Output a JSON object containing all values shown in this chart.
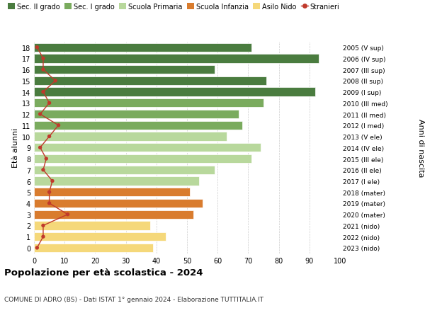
{
  "ages": [
    18,
    17,
    16,
    15,
    14,
    13,
    12,
    11,
    10,
    9,
    8,
    7,
    6,
    5,
    4,
    3,
    2,
    1,
    0
  ],
  "bar_values": [
    71,
    93,
    59,
    76,
    92,
    75,
    67,
    68,
    63,
    74,
    71,
    59,
    54,
    51,
    55,
    52,
    38,
    43,
    39
  ],
  "stranieri_values": [
    1,
    3,
    3,
    7,
    3,
    5,
    2,
    8,
    5,
    2,
    4,
    3,
    6,
    5,
    5,
    11,
    3,
    3,
    1
  ],
  "right_labels": [
    "2005 (V sup)",
    "2006 (IV sup)",
    "2007 (III sup)",
    "2008 (II sup)",
    "2009 (I sup)",
    "2010 (III med)",
    "2011 (II med)",
    "2012 (I med)",
    "2013 (V ele)",
    "2014 (IV ele)",
    "2015 (III ele)",
    "2016 (II ele)",
    "2017 (I ele)",
    "2018 (mater)",
    "2019 (mater)",
    "2020 (mater)",
    "2021 (nido)",
    "2022 (nido)",
    "2023 (nido)"
  ],
  "bar_colors": [
    "#4a7c3f",
    "#4a7c3f",
    "#4a7c3f",
    "#4a7c3f",
    "#4a7c3f",
    "#7aab5e",
    "#7aab5e",
    "#7aab5e",
    "#b8d89c",
    "#b8d89c",
    "#b8d89c",
    "#b8d89c",
    "#b8d89c",
    "#d97c2e",
    "#d97c2e",
    "#d97c2e",
    "#f5d87a",
    "#f5d87a",
    "#f5d87a"
  ],
  "legend_colors": [
    "#4a7c3f",
    "#7aab5e",
    "#b8d89c",
    "#d97c2e",
    "#f5d87a",
    "#c0392b"
  ],
  "legend_labels": [
    "Sec. II grado",
    "Sec. I grado",
    "Scuola Primaria",
    "Scuola Infanzia",
    "Asilo Nido",
    "Stranieri"
  ],
  "stranieri_color": "#c0392b",
  "title": "Popolazione per età scolastica - 2024",
  "subtitle": "COMUNE DI ADRO (BS) - Dati ISTAT 1° gennaio 2024 - Elaborazione TUTTITALIA.IT",
  "ylabel_left": "Età alunni",
  "ylabel_right": "Anni di nascita",
  "xlim": [
    0,
    100
  ],
  "xticks": [
    0,
    10,
    20,
    30,
    40,
    50,
    60,
    70,
    80,
    90,
    100
  ],
  "bg_color": "#ffffff",
  "grid_color": "#cccccc"
}
